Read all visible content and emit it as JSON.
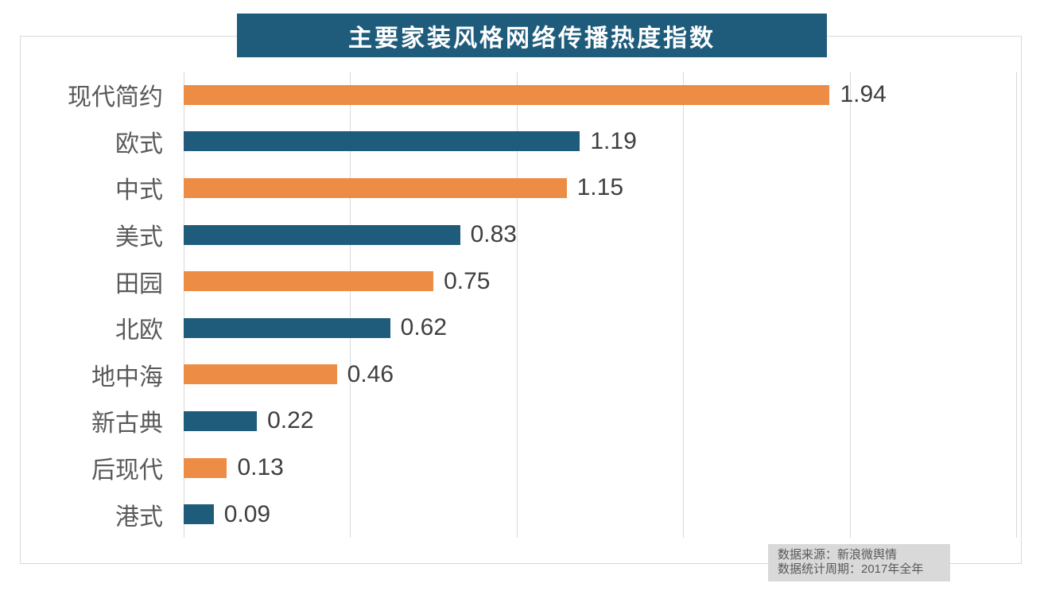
{
  "title": "主要家装风格网络传播热度指数",
  "chart_data": {
    "type": "bar",
    "orientation": "horizontal",
    "title": "主要家装风格网络传播热度指数",
    "categories": [
      "现代简约",
      "欧式",
      "中式",
      "美式",
      "田园",
      "北欧",
      "地中海",
      "新古典",
      "后现代",
      "港式"
    ],
    "values": [
      1.94,
      1.19,
      1.15,
      0.83,
      0.75,
      0.62,
      0.46,
      0.22,
      0.13,
      0.09
    ],
    "value_labels": [
      "1.94",
      "1.19",
      "1.15",
      "0.83",
      "0.75",
      "0.62",
      "0.46",
      "0.22",
      "0.13",
      "0.09"
    ],
    "xlim": [
      0,
      2.5
    ],
    "grid_step": 0.5,
    "grid": "vertical-on",
    "legend": "none",
    "bar_colors_alternating": [
      "#ed8c44",
      "#1f5c7c"
    ]
  },
  "footer": {
    "line1": "数据来源：新浪微舆情",
    "line2": "数据统计周期：2017年全年"
  },
  "colors": {
    "banner_bg": "#1f5c7c",
    "banner_text": "#ffffff",
    "bar_orange": "#ed8c44",
    "bar_teal": "#1f5c7c",
    "category_label": "#595959",
    "value_label": "#3f3f3f",
    "gridline": "#d9d9d9",
    "frame_border": "#d9d9d9",
    "footer_bg": "#d9d9d9",
    "footer_text": "#595959"
  }
}
